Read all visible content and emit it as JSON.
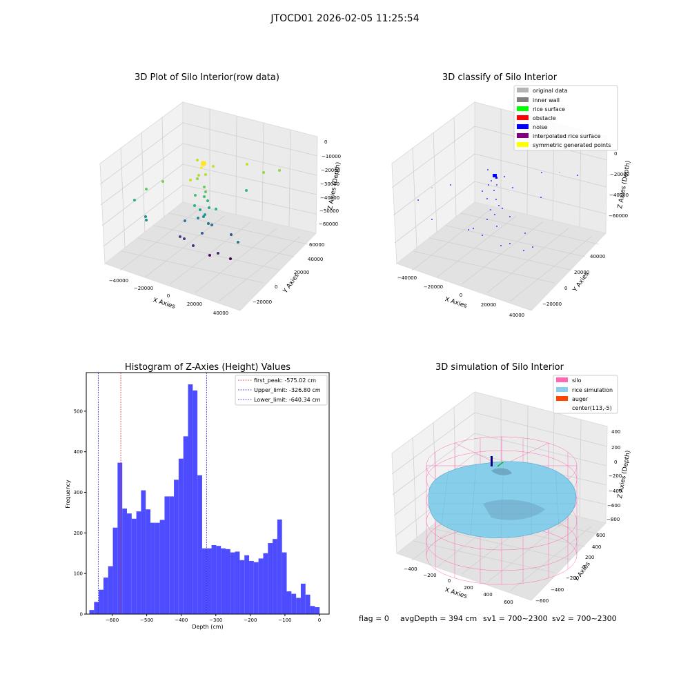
{
  "figure": {
    "suptitle": "JTOCD01 2026-02-05 11:25:54",
    "status": {
      "flag": "flag = 0",
      "avgDepth": "avgDepth = 394 cm",
      "sv1": "sv1 = 700~2300",
      "sv2": "sv2 = 700~2300"
    }
  },
  "chart_data": [
    {
      "type": "scatter",
      "projection": "3d",
      "title": "3D Plot of Silo Interior(row data)",
      "xlabel": "X Axies",
      "ylabel": "Y Axies",
      "zlabel": "Z Axies (Depth)",
      "xticks": [
        "−40000",
        "−20000",
        "0",
        "20000",
        "40000"
      ],
      "yticks": [
        "−20000",
        "0",
        "20000",
        "40000",
        "60000"
      ],
      "zticks": [
        "0",
        "−10000",
        "−20000",
        "−30000",
        "−40000",
        "−50000",
        "−60000"
      ],
      "colormap": "viridis",
      "grid": true
    },
    {
      "type": "scatter",
      "projection": "3d",
      "title": "3D classify of Silo Interior",
      "xlabel": "X Axies",
      "ylabel": "Y Axies",
      "zlabel": "Z Axies (Depth)",
      "xticks": [
        "−40000",
        "−20000",
        "0",
        "20000",
        "40000"
      ],
      "yticks": [
        "−20000",
        "0",
        "20000",
        "40000"
      ],
      "zticks": [
        "0",
        "−20000",
        "−40000",
        "−60000"
      ],
      "legend_position": "top-right",
      "legend": [
        {
          "label": "original data",
          "color": "#b4b4b4"
        },
        {
          "label": "inner wall",
          "color": "#808080"
        },
        {
          "label": "rice surface",
          "color": "#00ff00"
        },
        {
          "label": "obstacle",
          "color": "#ff0000"
        },
        {
          "label": "noise",
          "color": "#0000ff"
        },
        {
          "label": "interpolated rice surface",
          "color": "#800080"
        },
        {
          "label": "symmetric generated points",
          "color": "#ffff00"
        }
      ],
      "grid": true
    },
    {
      "type": "bar",
      "title": "Histogram of Z-Axies (Height) Values",
      "xlabel": "Depth (cm)",
      "ylabel": "Frequency",
      "xlim": [
        -675,
        28
      ],
      "ylim": [
        0,
        595
      ],
      "xticks": [
        -600,
        -500,
        -400,
        -300,
        -200,
        -100,
        0
      ],
      "yticks": [
        0,
        100,
        200,
        300,
        400,
        500
      ],
      "bin_start": -666,
      "bin_width": 13.6,
      "values": [
        10,
        30,
        60,
        90,
        118,
        213,
        373,
        260,
        248,
        235,
        253,
        305,
        258,
        225,
        225,
        232,
        290,
        290,
        331,
        383,
        438,
        566,
        551,
        342,
        162,
        162,
        170,
        168,
        162,
        160,
        152,
        154,
        133,
        145,
        131,
        128,
        137,
        150,
        175,
        185,
        233,
        152,
        56,
        50,
        40,
        75,
        48,
        20,
        17
      ],
      "bar_color": "#4d4dff",
      "vlines": [
        {
          "x": -575.02,
          "color": "#cc3333",
          "label": "first_peak: -575.02 cm"
        },
        {
          "x": -326.8,
          "color": "#2222cc",
          "label": "Upper_limit: -326.80 cm"
        },
        {
          "x": -640.34,
          "color": "#2222cc",
          "label": "Lower_limit: -640.34 cm"
        }
      ],
      "legend_position": "top-right"
    },
    {
      "type": "surface",
      "projection": "3d",
      "title": "3D simulation of Silo Interior",
      "xlabel": "X Axies",
      "ylabel": "Y Axies",
      "zlabel": "Z Axies (Depth)",
      "xticks": [
        "−400",
        "−200",
        "0",
        "200",
        "400",
        "600"
      ],
      "yticks": [
        "−600",
        "−400",
        "−200",
        "0",
        "200",
        "400",
        "600"
      ],
      "zticks": [
        "400",
        "200",
        "0",
        "−200",
        "−400",
        "−600",
        "−800"
      ],
      "legend_position": "top-right",
      "legend": [
        {
          "label": "silo",
          "color": "#ff69b4"
        },
        {
          "label": "rice simulation",
          "color": "#87ceeb"
        },
        {
          "label": "auger",
          "color": "#ff4500"
        },
        {
          "label": "center(113,-5)",
          "color": "#ffffff"
        }
      ],
      "grid": true
    }
  ]
}
